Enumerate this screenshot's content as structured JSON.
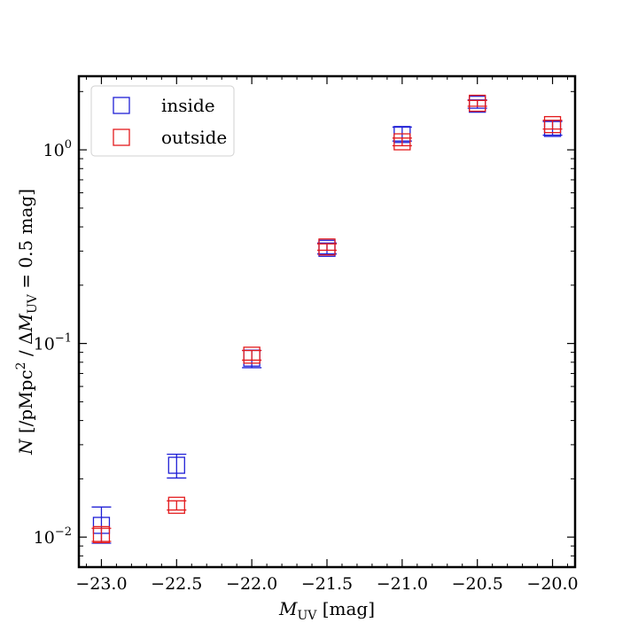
{
  "chart_data": {
    "type": "scatter",
    "title": "",
    "xlabel": "M_UV [mag]",
    "ylabel": "N [/pMpc² / ΔM_UV = 0.5 mag]",
    "x_scale": "linear",
    "y_scale": "log",
    "xlim": [
      -23.15,
      -19.85
    ],
    "ylim": [
      0.007,
      2.4
    ],
    "x_ticks": [
      -23.0,
      -22.5,
      -22.0,
      -21.5,
      -21.0,
      -20.5,
      -20.0
    ],
    "x_tick_labels": [
      "−23.0",
      "−22.5",
      "−22.0",
      "−21.5",
      "−21.0",
      "−20.5",
      "−20.0"
    ],
    "y_major_ticks": [
      0.01,
      0.1,
      1
    ],
    "legend_position": "top-left",
    "marker": "open-square",
    "series": [
      {
        "name": "inside",
        "color": "#1f1fd6",
        "x": [
          -23.0,
          -22.5,
          -22.0,
          -21.5,
          -21.0,
          -20.5,
          -20.0
        ],
        "y": [
          0.0115,
          0.0235,
          0.084,
          0.31,
          1.2,
          1.72,
          1.29
        ],
        "y_low": [
          0.0093,
          0.0202,
          0.075,
          0.29,
          1.11,
          1.64,
          1.19
        ],
        "y_high": [
          0.0143,
          0.0268,
          0.092,
          0.33,
          1.31,
          1.81,
          1.4
        ]
      },
      {
        "name": "outside",
        "color": "#e31a1c",
        "x": [
          -23.0,
          -22.5,
          -22.0,
          -21.5,
          -21.0,
          -20.5,
          -20.0
        ],
        "y": [
          0.0103,
          0.0146,
          0.087,
          0.315,
          1.1,
          1.74,
          1.35
        ],
        "y_low": [
          0.0095,
          0.0138,
          0.082,
          0.303,
          1.05,
          1.68,
          1.28
        ],
        "y_high": [
          0.0111,
          0.0154,
          0.092,
          0.327,
          1.15,
          1.8,
          1.42
        ]
      }
    ]
  }
}
